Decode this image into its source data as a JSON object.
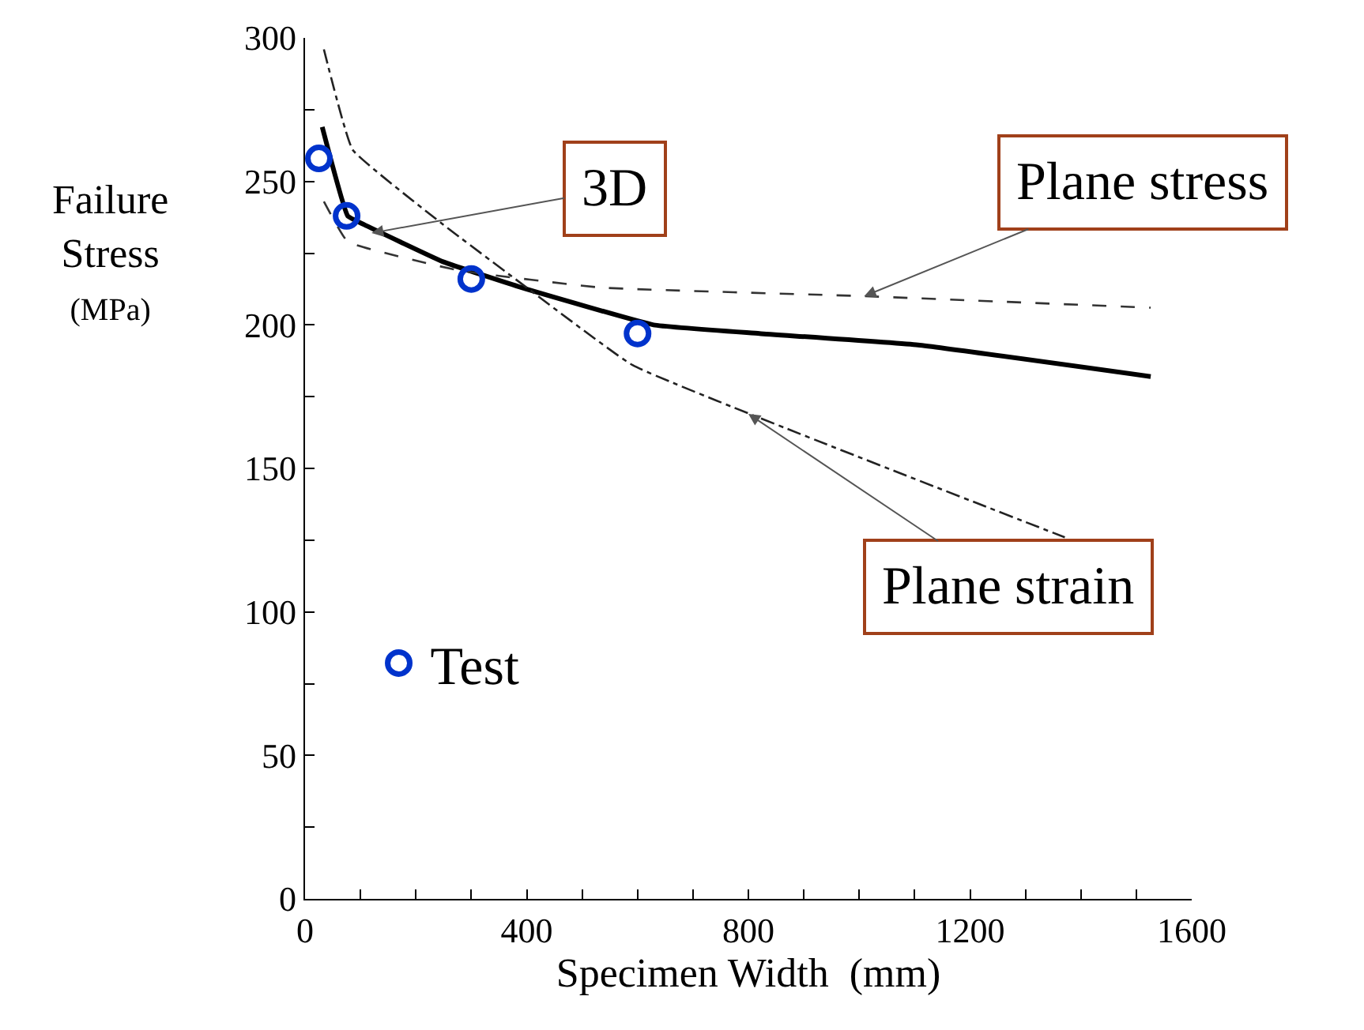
{
  "chart_data": {
    "type": "line",
    "xlabel": "Specimen Width  (mm)",
    "ylabel": "Failure\nStress\n(MPa)",
    "xlim": [
      0,
      1600
    ],
    "ylim": [
      0,
      300
    ],
    "xticks": [
      0,
      {
        "value": 100,
        "label": null
      },
      {
        "value": 200,
        "label": null
      },
      {
        "value": 300,
        "label": null
      },
      400,
      {
        "value": 500,
        "label": null
      },
      {
        "value": 600,
        "label": null
      },
      {
        "value": 700,
        "label": null
      },
      800,
      {
        "value": 900,
        "label": null
      },
      {
        "value": 1000,
        "label": null
      },
      {
        "value": 1100,
        "label": null
      },
      1200,
      {
        "value": 1300,
        "label": null
      },
      {
        "value": 1400,
        "label": null
      },
      {
        "value": 1500,
        "label": null
      },
      1600
    ],
    "yticks": [
      0,
      {
        "value": 25,
        "label": null
      },
      50,
      {
        "value": 75,
        "label": null
      },
      100,
      {
        "value": 125,
        "label": null
      },
      150,
      {
        "value": 175,
        "label": null
      },
      200,
      {
        "value": 225,
        "label": null
      },
      250,
      {
        "value": 275,
        "label": null
      },
      300
    ],
    "legend": "bottom left",
    "series": [
      {
        "color": "#000000",
        "line_style": "solid",
        "x": [
          31,
          77,
          106,
          249,
          391,
          629,
          820,
          1106,
          1526
        ],
        "values": [
          269,
          238,
          235,
          222,
          213,
          200,
          197,
          193,
          182
        ]
      },
      {
        "color": "#333333",
        "line_style": "dashed",
        "x": [
          34,
          77,
          277,
          534,
          1011,
          1526
        ],
        "values": [
          243,
          229,
          219,
          213,
          210,
          206
        ]
      },
      {
        "color": "#222222",
        "line_style": "dashdot",
        "x": [
          34,
          86,
          249,
          400,
          591,
          1371
        ],
        "values": [
          296,
          261,
          235,
          213,
          186,
          126
        ]
      },
      {
        "type": "scatter",
        "name": "Test",
        "color": "#0033cc",
        "marker": "circle",
        "x": [
          25,
          75,
          300,
          600
        ],
        "values": [
          258,
          238,
          216,
          197
        ]
      }
    ],
    "annotations": [
      {
        "text": "3D",
        "x": 120,
        "y": 232
      },
      {
        "text": "Plane stress",
        "x": 1009,
        "y": 210
      },
      {
        "text": "Plane strain",
        "x": 800,
        "y": 169
      }
    ]
  }
}
